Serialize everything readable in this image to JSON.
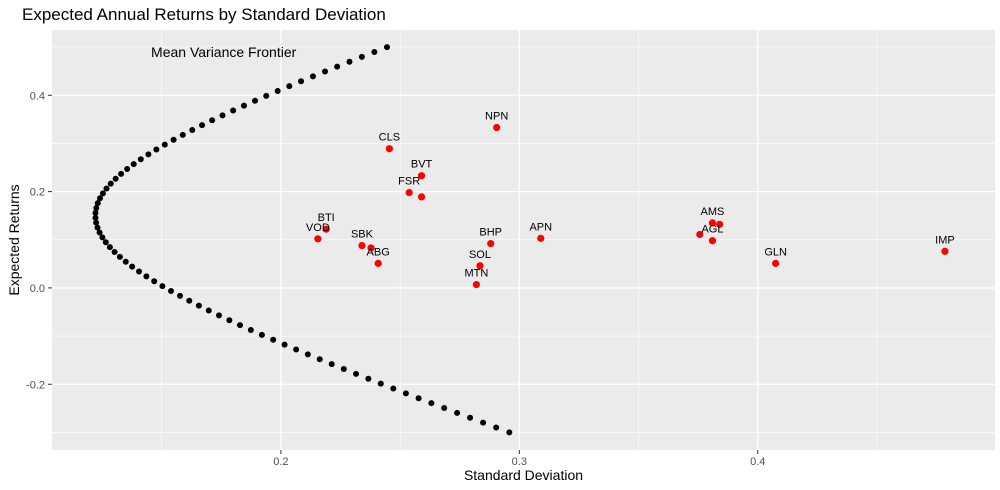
{
  "chart_data": {
    "type": "scatter",
    "title": "Expected Annual Returns by Standard Deviation",
    "xlabel": "Standard Deviation",
    "ylabel": "Expected Returns",
    "xlim": [
      0.104,
      0.4995
    ],
    "ylim": [
      -0.3365,
      0.5355
    ],
    "x_ticks": [
      0.2,
      0.3,
      0.4
    ],
    "x_tick_labels": [
      "0.2",
      "0.3",
      "0.4"
    ],
    "y_ticks": [
      -0.2,
      0.0,
      0.2,
      0.4
    ],
    "y_tick_labels": [
      "-0.2",
      "0.0",
      "0.2",
      "0.4"
    ],
    "grid": true,
    "frontier": {
      "annotation": "Mean Variance Frontier",
      "annotation_x": 0.176,
      "annotation_y": 0.49,
      "color": "#000000",
      "min_variance_point": [
        0.1222,
        0.15
      ],
      "top_point": [
        0.2445,
        0.5
      ],
      "bottom_point": [
        0.2958,
        -0.3
      ],
      "n_points": 80
    },
    "series": [
      {
        "color": "#ff0000",
        "points": [
          {
            "label": "NPN",
            "x": 0.2905,
            "y": 0.333
          },
          {
            "label": "CLS",
            "x": 0.2455,
            "y": 0.289
          },
          {
            "label": "BVT",
            "x": 0.259,
            "y": 0.233
          },
          {
            "label": "FSR",
            "x": 0.2538,
            "y": 0.198
          },
          {
            "label": "FSR",
            "x": 0.259,
            "y": 0.189,
            "hide_label": true
          },
          {
            "label": "BTI",
            "x": 0.219,
            "y": 0.122
          },
          {
            "label": "VOD",
            "x": 0.2155,
            "y": 0.102
          },
          {
            "label": "SBK",
            "x": 0.234,
            "y": 0.088
          },
          {
            "label": "SBK",
            "x": 0.2378,
            "y": 0.083,
            "hide_label": true
          },
          {
            "label": "ABG",
            "x": 0.2408,
            "y": 0.051
          },
          {
            "label": "BHP",
            "x": 0.288,
            "y": 0.092
          },
          {
            "label": "SOL",
            "x": 0.2835,
            "y": 0.046
          },
          {
            "label": "MTN",
            "x": 0.282,
            "y": 0.007
          },
          {
            "label": "APN",
            "x": 0.309,
            "y": 0.103
          },
          {
            "label": "AMS",
            "x": 0.381,
            "y": 0.135
          },
          {
            "label": "AMS",
            "x": 0.384,
            "y": 0.132,
            "hide_label": true
          },
          {
            "label": "AGL",
            "x": 0.3757,
            "y": 0.111,
            "hide_label": true
          },
          {
            "label": "AGL",
            "x": 0.381,
            "y": 0.098
          },
          {
            "label": "GLN",
            "x": 0.4075,
            "y": 0.051
          },
          {
            "label": "IMP",
            "x": 0.4785,
            "y": 0.076
          }
        ]
      }
    ]
  },
  "colors": {
    "panel_background": "#ebebeb",
    "grid_major": "#ffffff",
    "point_color": "#ff0000",
    "frontier_color": "#000000"
  }
}
